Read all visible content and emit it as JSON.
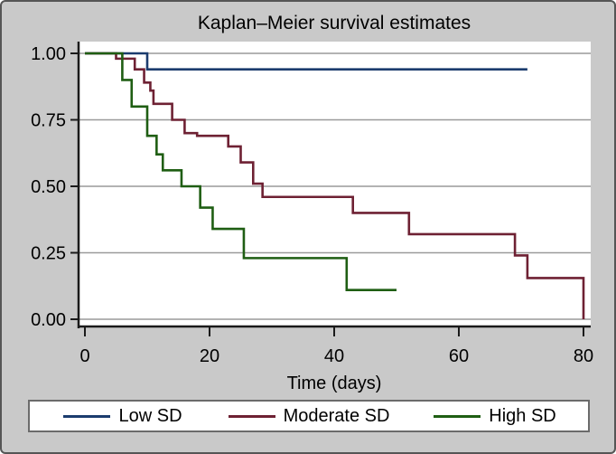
{
  "window": {
    "background_color": "#c9c9c9",
    "border_color": "#555555",
    "plot_background": "#ffffff",
    "gridline_color": "#9a9a9a",
    "axis_color": "#1a1a1a"
  },
  "chart_data": {
    "type": "line",
    "subtype": "kaplan-meier-step",
    "title": "Kaplan–Meier survival estimates",
    "xlabel": "Time (days)",
    "ylabel": "",
    "xlim": [
      0,
      80
    ],
    "ylim": [
      0.0,
      1.0
    ],
    "xticks": [
      0,
      20,
      40,
      60,
      80
    ],
    "yticks": [
      {
        "value": 0.0,
        "label": "0.00"
      },
      {
        "value": 0.25,
        "label": "0.25"
      },
      {
        "value": 0.5,
        "label": "0.50"
      },
      {
        "value": 0.75,
        "label": "0.75"
      },
      {
        "value": 1.0,
        "label": "1.00"
      }
    ],
    "grid": true,
    "legend_position": "bottom",
    "series": [
      {
        "name": "Low SD",
        "color": "#1b3c6e",
        "points": [
          [
            0,
            1.0
          ],
          [
            10,
            0.94
          ]
        ],
        "end_time": 71
      },
      {
        "name": "Moderate SD",
        "color": "#6e2133",
        "points": [
          [
            0,
            1.0
          ],
          [
            5,
            0.98
          ],
          [
            8,
            0.94
          ],
          [
            9.5,
            0.89
          ],
          [
            10.5,
            0.86
          ],
          [
            11,
            0.81
          ],
          [
            14,
            0.75
          ],
          [
            16,
            0.7
          ],
          [
            18,
            0.69
          ],
          [
            23,
            0.65
          ],
          [
            25,
            0.59
          ],
          [
            27,
            0.51
          ],
          [
            28.5,
            0.46
          ],
          [
            43,
            0.4
          ],
          [
            52,
            0.32
          ],
          [
            69,
            0.24
          ],
          [
            71,
            0.155
          ],
          [
            80,
            0.0
          ]
        ],
        "end_time": 80
      },
      {
        "name": "High SD",
        "color": "#1f5e13",
        "points": [
          [
            0,
            1.0
          ],
          [
            6,
            0.9
          ],
          [
            7.5,
            0.8
          ],
          [
            10,
            0.69
          ],
          [
            11.5,
            0.62
          ],
          [
            12.5,
            0.56
          ],
          [
            15.5,
            0.5
          ],
          [
            18.5,
            0.42
          ],
          [
            20.5,
            0.34
          ],
          [
            25.5,
            0.23
          ],
          [
            42,
            0.11
          ]
        ],
        "end_time": 50
      }
    ]
  }
}
